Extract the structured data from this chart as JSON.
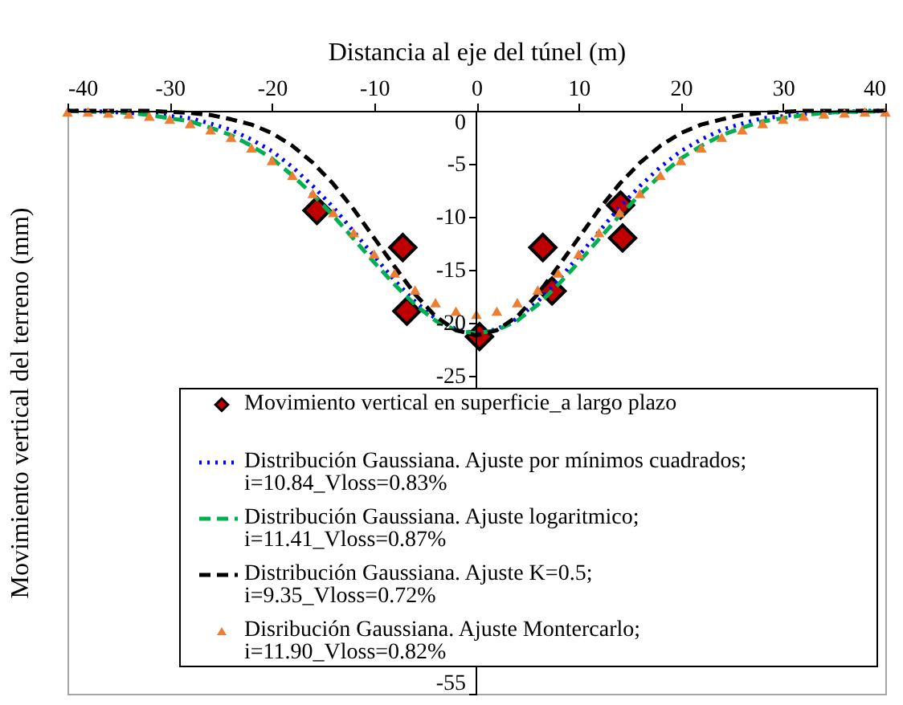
{
  "chart_data": {
    "type": "line",
    "xlabel": "Distancia al eje del túnel (m)",
    "ylabel": "Movimiento vertical del terreno (mm)",
    "xlim": [
      -40,
      40
    ],
    "xticks": [
      -40,
      -30,
      -20,
      -10,
      0,
      10,
      20,
      30,
      40
    ],
    "ylim": [
      -55,
      0
    ],
    "yticks": [
      0,
      -5,
      -10,
      -15,
      -20,
      -25,
      -55
    ],
    "grid": false,
    "legend": "bottom",
    "series": [
      {
        "type": "scatter",
        "name": "Movimiento vertical en superficie_a largo plazo",
        "color": "#c00000",
        "marker": "diamond",
        "x": [
          -15.6,
          -7.2,
          -6.8,
          0.3,
          6.5,
          7.4,
          14.1,
          14.3
        ],
        "values": [
          -9.4,
          -12.9,
          -18.9,
          -21.3,
          -12.9,
          -17.0,
          -8.9,
          -12.0
        ]
      },
      {
        "name": "Distribución Gaussiana. Ajuste por mínimos cuadrados; i=10.84_Vloss=0.83%",
        "color": "#0000ff",
        "marker": "none",
        "line_style": "dotted",
        "x": [
          -40,
          -38,
          -36,
          -34,
          -32,
          -30,
          -28,
          -26,
          -24,
          -22,
          -20,
          -18,
          -16,
          -14,
          -12,
          -10,
          -8,
          -6,
          -4,
          -2,
          0,
          2,
          4,
          6,
          8,
          10,
          12,
          14,
          16,
          18,
          20,
          22,
          24,
          26,
          28,
          30,
          32,
          34,
          36,
          38,
          40
        ],
        "values": [
          0.0,
          0.0,
          -0.1,
          -0.2,
          -0.3,
          -0.5,
          -0.7,
          -1.2,
          -1.8,
          -2.7,
          -3.8,
          -5.3,
          -7.1,
          -9.1,
          -11.4,
          -13.7,
          -16.0,
          -18.0,
          -19.6,
          -20.6,
          -21.0,
          -20.6,
          -19.6,
          -18.0,
          -16.0,
          -13.7,
          -11.4,
          -9.1,
          -7.1,
          -5.3,
          -3.8,
          -2.7,
          -1.8,
          -1.2,
          -0.7,
          -0.5,
          -0.3,
          -0.2,
          -0.1,
          0.0,
          0.0
        ]
      },
      {
        "name": "Distribución Gaussiana. Ajuste logaritmico; i=11.41_Vloss=0.87%",
        "color": "#00b050",
        "marker": "none",
        "line_style": "dashed",
        "x": [
          -40,
          -38,
          -36,
          -34,
          -32,
          -30,
          -28,
          -26,
          -24,
          -22,
          -20,
          -18,
          -16,
          -14,
          -12,
          -10,
          -8,
          -6,
          -4,
          -2,
          0,
          2,
          4,
          6,
          8,
          10,
          12,
          14,
          16,
          18,
          20,
          22,
          24,
          26,
          28,
          30,
          32,
          34,
          36,
          38,
          40
        ],
        "values": [
          0.0,
          -0.1,
          -0.1,
          -0.2,
          -0.4,
          -0.7,
          -1.0,
          -1.6,
          -2.3,
          -3.3,
          -4.5,
          -6.1,
          -7.9,
          -9.9,
          -12.1,
          -14.3,
          -16.4,
          -18.3,
          -19.8,
          -20.7,
          -21.0,
          -20.7,
          -19.8,
          -18.3,
          -16.4,
          -14.3,
          -12.1,
          -9.9,
          -7.9,
          -6.1,
          -4.5,
          -3.3,
          -2.3,
          -1.6,
          -1.0,
          -0.7,
          -0.4,
          -0.2,
          -0.1,
          -0.1,
          0.0
        ]
      },
      {
        "name": "Distribución Gaussiana. Ajuste K=0.5; i=9.35_Vloss=0.72%",
        "color": "#000000",
        "marker": "none",
        "line_style": "dashed",
        "x": [
          -40,
          -38,
          -36,
          -34,
          -32,
          -30,
          -28,
          -26,
          -24,
          -22,
          -20,
          -18,
          -16,
          -14,
          -12,
          -10,
          -8,
          -6,
          -4,
          -2,
          0,
          2,
          4,
          6,
          8,
          10,
          12,
          14,
          16,
          18,
          20,
          22,
          24,
          26,
          28,
          30,
          32,
          34,
          36,
          38,
          40
        ],
        "values": [
          0.0,
          0.0,
          0.0,
          0.0,
          0.0,
          -0.1,
          -0.2,
          -0.4,
          -0.8,
          -1.3,
          -2.1,
          -3.3,
          -4.9,
          -6.9,
          -9.3,
          -12.0,
          -14.7,
          -17.3,
          -19.4,
          -20.7,
          -21.2,
          -20.7,
          -19.4,
          -17.3,
          -14.7,
          -12.0,
          -9.3,
          -6.9,
          -4.9,
          -3.3,
          -2.1,
          -1.3,
          -0.8,
          -0.4,
          -0.2,
          -0.1,
          0.0,
          0.0,
          0.0,
          0.0,
          0.0
        ]
      },
      {
        "type": "scatter",
        "name": "Disribución Gaussiana. Ajuste Montercarlo; i=11.90_Vloss=0.82%",
        "color": "#ed7d31",
        "marker": "triangle",
        "x": [
          -40,
          -38,
          -36,
          -34,
          -32,
          -30,
          -28,
          -26,
          -24,
          -22,
          -20,
          -18,
          -16,
          -14,
          -12,
          -10,
          -8,
          -6,
          -4,
          -2,
          0,
          2,
          4,
          6,
          8,
          10,
          12,
          14,
          16,
          18,
          20,
          22,
          24,
          26,
          28,
          30,
          32,
          34,
          36,
          38,
          40
        ],
        "values": [
          -0.1,
          -0.1,
          -0.2,
          -0.3,
          -0.5,
          -0.8,
          -1.2,
          -1.8,
          -2.5,
          -3.5,
          -4.7,
          -6.1,
          -7.8,
          -9.6,
          -11.5,
          -13.5,
          -15.3,
          -16.9,
          -18.1,
          -18.9,
          -19.2,
          -18.9,
          -18.1,
          -16.9,
          -15.3,
          -13.5,
          -11.5,
          -9.6,
          -7.8,
          -6.1,
          -4.7,
          -3.5,
          -2.5,
          -1.8,
          -1.2,
          -0.8,
          -0.5,
          -0.3,
          -0.2,
          -0.1,
          -0.1
        ]
      }
    ]
  }
}
